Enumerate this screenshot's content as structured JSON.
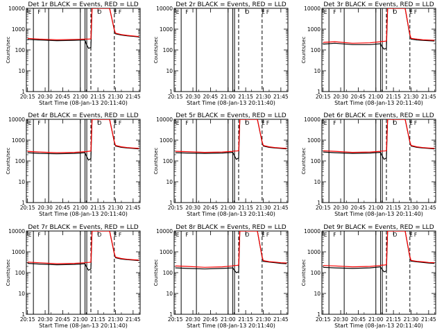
{
  "common": {
    "type": "line",
    "ylabel": "Counts/sec",
    "xlabel": "Start Time (08-Jan-13 20:11:40)",
    "x_tick_labels": [
      "20:15",
      "20:30",
      "20:45",
      "21:00",
      "21:15",
      "21:30",
      "21:45"
    ],
    "x_tick_minutes": [
      15,
      30,
      45,
      60,
      75,
      90,
      105
    ],
    "xlim_minutes": [
      14,
      111
    ],
    "ylim": [
      1,
      10000
    ],
    "yscale": "log",
    "y_tick_labels": [
      "1",
      "10",
      "100",
      "1000",
      "10000"
    ],
    "y_tick_values": [
      1,
      10,
      100,
      1000,
      10000
    ],
    "markers": {
      "solid_minutes": [
        20,
        33,
        60,
        64,
        65.5
      ],
      "dashed_minutes": [
        69,
        89
      ],
      "flag_labels": [
        "E",
        "F",
        "D",
        "E",
        "F"
      ],
      "flag_minutes": [
        15,
        23,
        74,
        88,
        92
      ]
    },
    "colors": {
      "events": "#000000",
      "lld": "#ff0000"
    }
  },
  "chart_data": [
    {
      "title": "Det 1r  BLACK = Events, RED = LLD",
      "series": [
        {
          "name": "Events",
          "x": [
            15,
            25,
            40,
            55,
            64,
            65,
            67,
            69,
            70,
            71,
            75,
            80,
            85,
            89,
            90,
            95,
            100,
            105,
            110
          ],
          "y": [
            320,
            300,
            280,
            290,
            300,
            200,
            120,
            130,
            10000,
            10000,
            10000,
            10000,
            10000,
            900,
            600,
            520,
            480,
            450,
            420
          ]
        },
        {
          "name": "LLD",
          "x": [
            15,
            25,
            40,
            55,
            64,
            65,
            67,
            69,
            70,
            71,
            75,
            80,
            85,
            89,
            90,
            95,
            100,
            105,
            110
          ],
          "y": [
            360,
            330,
            310,
            320,
            330,
            330,
            330,
            340,
            10000,
            10000,
            10000,
            10000,
            10000,
            950,
            640,
            550,
            500,
            470,
            440
          ]
        }
      ]
    },
    {
      "title": "Det 2r  BLACK = Events, RED = LLD",
      "series": []
    },
    {
      "title": "Det 3r  BLACK = Events, RED = LLD",
      "series": [
        {
          "name": "Events",
          "x": [
            15,
            25,
            40,
            55,
            64,
            65,
            67,
            69,
            70,
            71,
            75,
            80,
            85,
            89,
            90,
            95,
            100,
            105,
            110
          ],
          "y": [
            190,
            210,
            180,
            180,
            200,
            150,
            110,
            120,
            10000,
            10000,
            10000,
            10000,
            10000,
            500,
            330,
            300,
            290,
            280,
            270
          ]
        },
        {
          "name": "LLD",
          "x": [
            15,
            25,
            40,
            55,
            64,
            65,
            67,
            69,
            70,
            71,
            75,
            80,
            85,
            89,
            90,
            95,
            100,
            105,
            110
          ],
          "y": [
            230,
            250,
            210,
            220,
            250,
            260,
            260,
            270,
            10000,
            10000,
            10000,
            10000,
            10000,
            560,
            360,
            330,
            310,
            300,
            290
          ]
        }
      ]
    },
    {
      "title": "Det 4r  BLACK = Events, RED = LLD",
      "series": [
        {
          "name": "Events",
          "x": [
            15,
            25,
            40,
            55,
            64,
            65,
            67,
            69,
            70,
            71,
            75,
            80,
            85,
            89,
            90,
            95,
            100,
            105,
            110
          ],
          "y": [
            250,
            230,
            220,
            230,
            250,
            180,
            110,
            130,
            10000,
            10000,
            10000,
            10000,
            10000,
            800,
            520,
            450,
            420,
            400,
            380
          ]
        },
        {
          "name": "LLD",
          "x": [
            15,
            25,
            40,
            55,
            64,
            65,
            67,
            69,
            70,
            71,
            75,
            80,
            85,
            89,
            90,
            95,
            100,
            105,
            110
          ],
          "y": [
            290,
            270,
            250,
            260,
            280,
            280,
            290,
            300,
            10000,
            10000,
            10000,
            10000,
            10000,
            850,
            560,
            480,
            440,
            420,
            400
          ]
        }
      ]
    },
    {
      "title": "Det 5r  BLACK = Events, RED = LLD",
      "series": [
        {
          "name": "Events",
          "x": [
            15,
            25,
            40,
            55,
            64,
            65,
            67,
            69,
            70,
            71,
            75,
            80,
            85,
            89,
            90,
            95,
            100,
            105,
            110
          ],
          "y": [
            250,
            240,
            230,
            240,
            260,
            200,
            120,
            140,
            10000,
            10000,
            10000,
            10000,
            10000,
            800,
            520,
            450,
            420,
            400,
            380
          ]
        },
        {
          "name": "LLD",
          "x": [
            15,
            25,
            40,
            55,
            64,
            65,
            67,
            69,
            70,
            71,
            75,
            80,
            85,
            89,
            90,
            95,
            100,
            105,
            110
          ],
          "y": [
            290,
            280,
            260,
            270,
            290,
            300,
            300,
            310,
            10000,
            10000,
            10000,
            10000,
            10000,
            850,
            560,
            480,
            440,
            420,
            400
          ]
        }
      ]
    },
    {
      "title": "Det 6r  BLACK = Events, RED = LLD",
      "series": [
        {
          "name": "Events",
          "x": [
            15,
            25,
            40,
            55,
            64,
            65,
            67,
            69,
            70,
            71,
            75,
            80,
            85,
            89,
            90,
            95,
            100,
            105,
            110
          ],
          "y": [
            270,
            250,
            230,
            240,
            260,
            190,
            120,
            140,
            10000,
            10000,
            10000,
            10000,
            10000,
            800,
            520,
            450,
            420,
            400,
            380
          ]
        },
        {
          "name": "LLD",
          "x": [
            15,
            25,
            40,
            55,
            64,
            65,
            67,
            69,
            70,
            71,
            75,
            80,
            85,
            89,
            90,
            95,
            100,
            105,
            110
          ],
          "y": [
            310,
            290,
            260,
            270,
            290,
            300,
            300,
            310,
            10000,
            10000,
            10000,
            10000,
            10000,
            850,
            560,
            480,
            440,
            420,
            400
          ]
        }
      ]
    },
    {
      "title": "Det 7r  BLACK = Events, RED = LLD",
      "series": [
        {
          "name": "Events",
          "x": [
            15,
            25,
            40,
            55,
            64,
            65,
            67,
            69,
            70,
            71,
            75,
            80,
            85,
            89,
            90,
            95,
            100,
            105,
            110
          ],
          "y": [
            280,
            260,
            240,
            250,
            270,
            200,
            130,
            150,
            10000,
            10000,
            10000,
            10000,
            10000,
            800,
            520,
            450,
            420,
            400,
            380
          ]
        },
        {
          "name": "LLD",
          "x": [
            15,
            25,
            40,
            55,
            64,
            65,
            67,
            69,
            70,
            71,
            75,
            80,
            85,
            89,
            90,
            95,
            100,
            105,
            110
          ],
          "y": [
            320,
            300,
            270,
            280,
            300,
            310,
            310,
            320,
            10000,
            10000,
            10000,
            10000,
            10000,
            850,
            560,
            480,
            440,
            420,
            400
          ]
        }
      ]
    },
    {
      "title": "Det 8r  BLACK = Events, RED = LLD",
      "series": [
        {
          "name": "Events",
          "x": [
            15,
            25,
            40,
            55,
            64,
            65,
            67,
            69,
            70,
            71,
            75,
            80,
            85,
            89,
            90,
            95,
            100,
            105,
            110
          ],
          "y": [
            170,
            160,
            150,
            160,
            170,
            140,
            100,
            110,
            10000,
            10000,
            10000,
            10000,
            10000,
            550,
            350,
            320,
            300,
            280,
            270
          ]
        },
        {
          "name": "LLD",
          "x": [
            15,
            25,
            40,
            55,
            64,
            65,
            67,
            69,
            70,
            71,
            75,
            80,
            85,
            89,
            90,
            95,
            100,
            105,
            110
          ],
          "y": [
            210,
            200,
            180,
            190,
            210,
            220,
            220,
            230,
            10000,
            10000,
            10000,
            10000,
            10000,
            600,
            380,
            340,
            320,
            300,
            290
          ]
        }
      ]
    },
    {
      "title": "Det 9r  BLACK = Events, RED = LLD",
      "series": [
        {
          "name": "Events",
          "x": [
            15,
            25,
            40,
            55,
            64,
            65,
            67,
            69,
            70,
            71,
            75,
            80,
            85,
            89,
            90,
            95,
            100,
            105,
            110
          ],
          "y": [
            180,
            170,
            160,
            170,
            190,
            150,
            110,
            120,
            10000,
            10000,
            10000,
            10000,
            10000,
            550,
            360,
            330,
            310,
            290,
            280
          ]
        },
        {
          "name": "LLD",
          "x": [
            15,
            25,
            40,
            55,
            64,
            65,
            67,
            69,
            70,
            71,
            75,
            80,
            85,
            89,
            90,
            95,
            100,
            105,
            110
          ],
          "y": [
            220,
            210,
            190,
            200,
            220,
            230,
            230,
            240,
            10000,
            10000,
            10000,
            10000,
            10000,
            600,
            390,
            350,
            330,
            310,
            300
          ]
        }
      ]
    }
  ]
}
